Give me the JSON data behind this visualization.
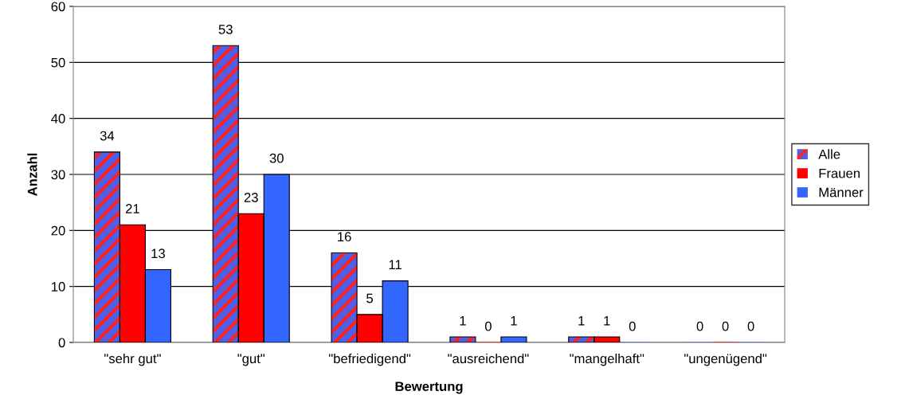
{
  "chart_data": {
    "type": "bar",
    "xlabel": "Bewertung",
    "ylabel": "Anzahl",
    "categories": [
      "\"sehr gut\"",
      "\"gut\"",
      "\"befriedigend\"",
      "\"ausreichend\"",
      "\"mangelhaft\"",
      "\"ungenügend\""
    ],
    "series": [
      {
        "name": "Alle",
        "color": "#4f5fe8",
        "values": [
          34,
          53,
          16,
          1,
          1,
          0
        ]
      },
      {
        "name": "Frauen",
        "color": "#ff0000",
        "values": [
          21,
          23,
          5,
          0,
          1,
          0
        ]
      },
      {
        "name": "Männer",
        "color": "#3366ff",
        "values": [
          13,
          30,
          11,
          1,
          0,
          0
        ]
      }
    ],
    "ylim": [
      0,
      60
    ],
    "yticks": [
      0,
      10,
      20,
      30,
      40,
      50,
      60
    ],
    "grid": "y",
    "legend": "right",
    "data_labels": true
  }
}
